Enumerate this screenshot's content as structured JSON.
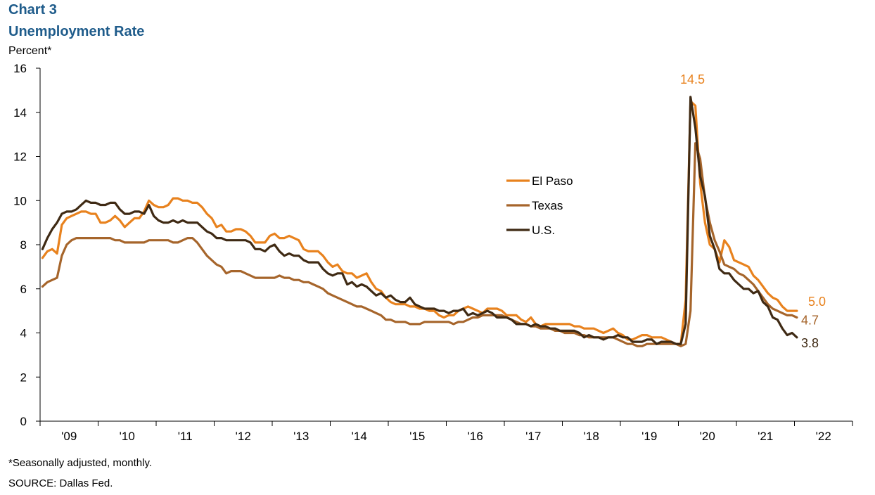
{
  "chart_data": {
    "type": "line",
    "title": "Chart 3",
    "subtitle": "Unemployment Rate",
    "ylabel": "Percent*",
    "xlabel": "",
    "ylim": [
      0,
      16
    ],
    "y_ticks": [
      "0",
      "2",
      "4",
      "6",
      "8",
      "10",
      "12",
      "14",
      "16"
    ],
    "x_ticks": [
      "'09",
      "'10",
      "'11",
      "'12",
      "'13",
      "'14",
      "'15",
      "'16",
      "'17",
      "'18",
      "'19",
      "'20",
      "'21",
      "'22"
    ],
    "x_start": "2009-01",
    "frequency": "monthly",
    "grid": false,
    "legend_position": "center-right",
    "footnote": "*Seasonally adjusted, monthly.",
    "source": "SOURCE: Dallas Fed.",
    "annotations": [
      {
        "text": "14.5",
        "series": "El Paso",
        "x": "2020-04",
        "y": 14.5
      },
      {
        "text": "5.0",
        "series": "El Paso",
        "x": "2022-01",
        "y": 5.0
      },
      {
        "text": "4.7",
        "series": "Texas",
        "x": "2022-01",
        "y": 4.7
      },
      {
        "text": "3.8",
        "series": "U.S.",
        "x": "2022-01",
        "y": 3.8
      }
    ],
    "series": [
      {
        "name": "El Paso",
        "color": "#e8821e",
        "values": [
          7.4,
          7.7,
          7.8,
          7.6,
          8.9,
          9.2,
          9.3,
          9.4,
          9.5,
          9.5,
          9.4,
          9.4,
          9.0,
          9.0,
          9.1,
          9.3,
          9.1,
          8.8,
          9.0,
          9.2,
          9.2,
          9.5,
          10.0,
          9.8,
          9.7,
          9.7,
          9.8,
          10.1,
          10.1,
          10.0,
          10.0,
          9.9,
          9.9,
          9.7,
          9.4,
          9.2,
          8.8,
          8.9,
          8.6,
          8.6,
          8.7,
          8.7,
          8.6,
          8.4,
          8.1,
          8.1,
          8.1,
          8.4,
          8.5,
          8.3,
          8.3,
          8.4,
          8.3,
          8.2,
          7.8,
          7.7,
          7.7,
          7.7,
          7.5,
          7.2,
          7.0,
          7.1,
          6.8,
          6.7,
          6.7,
          6.5,
          6.6,
          6.7,
          6.3,
          6.0,
          5.9,
          5.6,
          5.4,
          5.3,
          5.3,
          5.3,
          5.2,
          5.2,
          5.1,
          5.1,
          5.0,
          5.0,
          4.8,
          4.7,
          4.8,
          4.8,
          5.0,
          5.1,
          5.2,
          5.1,
          5.0,
          4.9,
          5.1,
          5.1,
          5.1,
          5.0,
          4.8,
          4.8,
          4.8,
          4.6,
          4.5,
          4.7,
          4.4,
          4.3,
          4.4,
          4.4,
          4.4,
          4.4,
          4.4,
          4.4,
          4.3,
          4.3,
          4.2,
          4.2,
          4.2,
          4.1,
          4.0,
          4.1,
          4.2,
          4.0,
          3.9,
          3.7,
          3.7,
          3.8,
          3.9,
          3.9,
          3.8,
          3.8,
          3.8,
          3.7,
          3.6,
          3.5,
          3.5,
          5.5,
          14.5,
          14.3,
          10.8,
          9.0,
          8.0,
          7.8,
          7.2,
          8.2,
          7.9,
          7.3,
          7.2,
          7.1,
          7.0,
          6.6,
          6.4,
          6.1,
          5.8,
          5.6,
          5.5,
          5.2,
          5.0,
          5.0,
          5.0
        ]
      },
      {
        "name": "Texas",
        "color": "#a6652b",
        "values": [
          6.1,
          6.3,
          6.4,
          6.5,
          7.5,
          8.0,
          8.2,
          8.3,
          8.3,
          8.3,
          8.3,
          8.3,
          8.3,
          8.3,
          8.3,
          8.2,
          8.2,
          8.1,
          8.1,
          8.1,
          8.1,
          8.1,
          8.2,
          8.2,
          8.2,
          8.2,
          8.2,
          8.1,
          8.1,
          8.2,
          8.3,
          8.3,
          8.1,
          7.8,
          7.5,
          7.3,
          7.1,
          7.0,
          6.7,
          6.8,
          6.8,
          6.8,
          6.7,
          6.6,
          6.5,
          6.5,
          6.5,
          6.5,
          6.5,
          6.6,
          6.5,
          6.5,
          6.4,
          6.4,
          6.3,
          6.3,
          6.2,
          6.1,
          6.0,
          5.8,
          5.7,
          5.6,
          5.5,
          5.4,
          5.3,
          5.2,
          5.2,
          5.1,
          5.0,
          4.9,
          4.8,
          4.6,
          4.6,
          4.5,
          4.5,
          4.5,
          4.4,
          4.4,
          4.4,
          4.5,
          4.5,
          4.5,
          4.5,
          4.5,
          4.5,
          4.4,
          4.5,
          4.5,
          4.6,
          4.7,
          4.7,
          4.8,
          4.8,
          4.8,
          4.8,
          4.8,
          4.7,
          4.6,
          4.5,
          4.4,
          4.4,
          4.3,
          4.3,
          4.2,
          4.2,
          4.2,
          4.1,
          4.1,
          4.0,
          4.0,
          4.0,
          3.9,
          3.9,
          3.8,
          3.8,
          3.8,
          3.8,
          3.8,
          3.8,
          3.7,
          3.6,
          3.5,
          3.5,
          3.4,
          3.4,
          3.5,
          3.5,
          3.5,
          3.5,
          3.5,
          3.5,
          3.5,
          3.4,
          3.5,
          5.0,
          12.6,
          11.9,
          10.1,
          9.0,
          8.2,
          7.7,
          7.1,
          7.0,
          6.9,
          6.7,
          6.6,
          6.4,
          6.2,
          5.9,
          5.6,
          5.3,
          5.1,
          5.0,
          4.9,
          4.8,
          4.8,
          4.7
        ]
      },
      {
        "name": "U.S.",
        "color": "#3f2a14",
        "values": [
          7.8,
          8.3,
          8.7,
          9.0,
          9.4,
          9.5,
          9.5,
          9.6,
          9.8,
          10.0,
          9.9,
          9.9,
          9.8,
          9.8,
          9.9,
          9.9,
          9.6,
          9.4,
          9.4,
          9.5,
          9.5,
          9.4,
          9.8,
          9.3,
          9.1,
          9.0,
          9.0,
          9.1,
          9.0,
          9.1,
          9.0,
          9.0,
          9.0,
          8.8,
          8.6,
          8.5,
          8.3,
          8.3,
          8.2,
          8.2,
          8.2,
          8.2,
          8.2,
          8.1,
          7.8,
          7.8,
          7.7,
          7.9,
          8.0,
          7.7,
          7.5,
          7.6,
          7.5,
          7.5,
          7.3,
          7.2,
          7.2,
          7.2,
          6.9,
          6.7,
          6.6,
          6.7,
          6.7,
          6.2,
          6.3,
          6.1,
          6.2,
          6.1,
          5.9,
          5.7,
          5.8,
          5.6,
          5.7,
          5.5,
          5.4,
          5.4,
          5.6,
          5.3,
          5.2,
          5.1,
          5.1,
          5.1,
          5.0,
          5.0,
          4.9,
          5.0,
          5.0,
          5.1,
          4.8,
          4.9,
          4.8,
          4.9,
          5.0,
          4.9,
          4.7,
          4.7,
          4.7,
          4.6,
          4.4,
          4.4,
          4.4,
          4.3,
          4.4,
          4.3,
          4.3,
          4.2,
          4.2,
          4.1,
          4.1,
          4.1,
          4.1,
          4.0,
          3.8,
          3.9,
          3.8,
          3.8,
          3.7,
          3.8,
          3.8,
          3.9,
          3.8,
          3.8,
          3.6,
          3.6,
          3.6,
          3.7,
          3.7,
          3.5,
          3.6,
          3.6,
          3.6,
          3.5,
          3.5,
          4.4,
          14.7,
          13.3,
          11.1,
          10.2,
          8.4,
          7.8,
          6.9,
          6.7,
          6.7,
          6.4,
          6.2,
          6.0,
          6.0,
          5.8,
          5.9,
          5.4,
          5.2,
          4.7,
          4.6,
          4.2,
          3.9,
          4.0,
          3.8
        ]
      }
    ]
  }
}
